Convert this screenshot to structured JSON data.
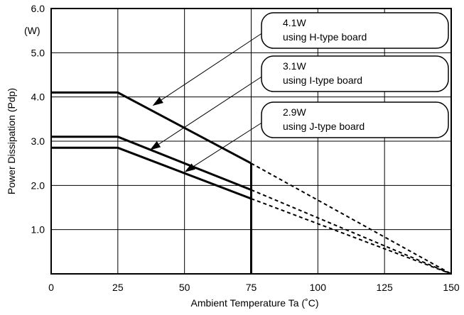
{
  "chart_data": {
    "type": "line",
    "title": "",
    "xlabel": "Ambient Temperature  Ta (˚C)",
    "ylabel": "Power Dissipation (Pdp)",
    "y_unit_label": "(W)",
    "xlim": [
      0,
      150
    ],
    "ylim": [
      0,
      6
    ],
    "grid": true,
    "x_ticks": [
      0,
      25,
      50,
      75,
      100,
      125,
      150
    ],
    "x_tick_labels": [
      "0",
      "25",
      "50",
      "75",
      "100",
      "125",
      "150"
    ],
    "y_ticks": [
      1,
      2,
      3,
      4,
      5,
      6
    ],
    "y_tick_labels": [
      "1.0",
      "2.0",
      "3.0",
      "4.0",
      "5.0",
      "6.0"
    ],
    "cutoff_x": 75,
    "series": [
      {
        "annotation": [
          "4.1W",
          "using H-type board"
        ],
        "solid": [
          [
            0,
            4.1
          ],
          [
            25,
            4.1
          ],
          [
            75,
            2.5
          ]
        ],
        "dashed": [
          [
            75,
            2.5
          ],
          [
            150,
            0
          ]
        ],
        "arrow_to": [
          38,
          3.8
        ]
      },
      {
        "annotation": [
          "3.1W",
          "using I-type board"
        ],
        "solid": [
          [
            0,
            3.1
          ],
          [
            25,
            3.1
          ],
          [
            75,
            1.9
          ]
        ],
        "dashed": [
          [
            75,
            1.9
          ],
          [
            150,
            0
          ]
        ],
        "arrow_to": [
          37,
          2.8
        ]
      },
      {
        "annotation": [
          "2.9W",
          "using J-type board"
        ],
        "solid": [
          [
            0,
            2.85
          ],
          [
            25,
            2.85
          ],
          [
            75,
            1.7
          ]
        ],
        "dashed": [
          [
            75,
            1.7
          ],
          [
            150,
            0
          ]
        ],
        "arrow_to": [
          50,
          2.3
        ]
      }
    ]
  }
}
